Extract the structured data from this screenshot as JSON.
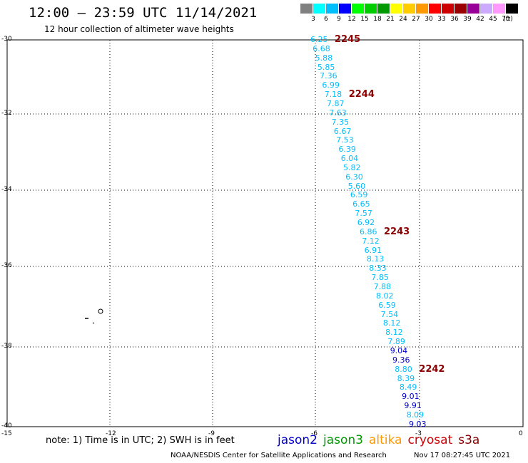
{
  "header": {
    "title": "12:00 – 23:59 UTC 11/14/2021",
    "subtitle": "12 hour collection of altimeter wave heights"
  },
  "legend": {
    "unit": "(ft)",
    "bins": [
      {
        "label": "3",
        "color": "#808080"
      },
      {
        "label": "6",
        "color": "#00ffff"
      },
      {
        "label": "9",
        "color": "#00bfff"
      },
      {
        "label": "12",
        "color": "#0000ff"
      },
      {
        "label": "15",
        "color": "#00ff00"
      },
      {
        "label": "18",
        "color": "#00cc00"
      },
      {
        "label": "21",
        "color": "#009900"
      },
      {
        "label": "24",
        "color": "#ffff00"
      },
      {
        "label": "27",
        "color": "#ffcc00"
      },
      {
        "label": "30",
        "color": "#ff9900"
      },
      {
        "label": "33",
        "color": "#ff0000"
      },
      {
        "label": "36",
        "color": "#cc0000"
      },
      {
        "label": "39",
        "color": "#990000"
      },
      {
        "label": "42",
        "color": "#990099"
      },
      {
        "label": "45",
        "color": "#ccaaff"
      },
      {
        "label": "70",
        "color": "#ff99ff"
      },
      {
        "label": "",
        "color": "#000000"
      }
    ]
  },
  "map": {
    "lat_labels": [
      "-30",
      "-32",
      "-34",
      "-36",
      "-38",
      "-40"
    ],
    "lon_labels": [
      "-15",
      "-12",
      "-9",
      "-6",
      "-3",
      "0"
    ],
    "pass_labels": [
      "2245",
      "2244",
      "2243",
      "2242"
    ],
    "observations": [
      {
        "value": "6.25",
        "color": "#00bfff"
      },
      {
        "value": "6.68",
        "color": "#00bfff"
      },
      {
        "value": "5.88",
        "color": "#00bfff"
      },
      {
        "value": "5.85",
        "color": "#00bfff"
      },
      {
        "value": "7.36",
        "color": "#00bfff"
      },
      {
        "value": "6.99",
        "color": "#00bfff"
      },
      {
        "value": "7.18",
        "color": "#00bfff"
      },
      {
        "value": "7.87",
        "color": "#00bfff"
      },
      {
        "value": "7.63",
        "color": "#00bfff"
      },
      {
        "value": "7.35",
        "color": "#00bfff"
      },
      {
        "value": "6.67",
        "color": "#00bfff"
      },
      {
        "value": "7.53",
        "color": "#00bfff"
      },
      {
        "value": "6.39",
        "color": "#00bfff"
      },
      {
        "value": "6.04",
        "color": "#00bfff"
      },
      {
        "value": "5.82",
        "color": "#00bfff"
      },
      {
        "value": "6.30",
        "color": "#00bfff"
      },
      {
        "value": "5.60",
        "color": "#00bfff"
      },
      {
        "value": "6.59",
        "color": "#00bfff"
      },
      {
        "value": "6.65",
        "color": "#00bfff"
      },
      {
        "value": "7.57",
        "color": "#00bfff"
      },
      {
        "value": "6.92",
        "color": "#00bfff"
      },
      {
        "value": "6.86",
        "color": "#00bfff"
      },
      {
        "value": "7.12",
        "color": "#00bfff"
      },
      {
        "value": "6.91",
        "color": "#00bfff"
      },
      {
        "value": "8.13",
        "color": "#00bfff"
      },
      {
        "value": "8.33",
        "color": "#00bfff"
      },
      {
        "value": "7.85",
        "color": "#00bfff"
      },
      {
        "value": "7.88",
        "color": "#00bfff"
      },
      {
        "value": "8.02",
        "color": "#00bfff"
      },
      {
        "value": "6.59",
        "color": "#00bfff"
      },
      {
        "value": "7.54",
        "color": "#00bfff"
      },
      {
        "value": "8.12",
        "color": "#00bfff"
      },
      {
        "value": "8.12",
        "color": "#00bfff"
      },
      {
        "value": "7.89",
        "color": "#00bfff"
      },
      {
        "value": "9.04",
        "color": "#0000cc"
      },
      {
        "value": "9.36",
        "color": "#0000cc"
      },
      {
        "value": "8.80",
        "color": "#00bfff"
      },
      {
        "value": "8.39",
        "color": "#00bfff"
      },
      {
        "value": "8.49",
        "color": "#00bfff"
      },
      {
        "value": "9.01",
        "color": "#0000cc"
      },
      {
        "value": "9.91",
        "color": "#0000cc"
      },
      {
        "value": "8.09",
        "color": "#00bfff"
      },
      {
        "value": "9.03",
        "color": "#0000cc"
      }
    ]
  },
  "note": "note: 1) Time is in UTC; 2) SWH is in feet",
  "satellites": [
    {
      "name": "jason2",
      "color": "#0000cc"
    },
    {
      "name": "jason3",
      "color": "#009900"
    },
    {
      "name": "altika",
      "color": "#ff9900"
    },
    {
      "name": "cryosat",
      "color": "#cc0000"
    },
    {
      "name": "s3a",
      "color": "#8b0000"
    }
  ],
  "footer": {
    "source": "NOAA/NESDIS Center for Satellite Applications and Research",
    "timestamp": "Nov 17 08:27:45 UTC 2021"
  }
}
